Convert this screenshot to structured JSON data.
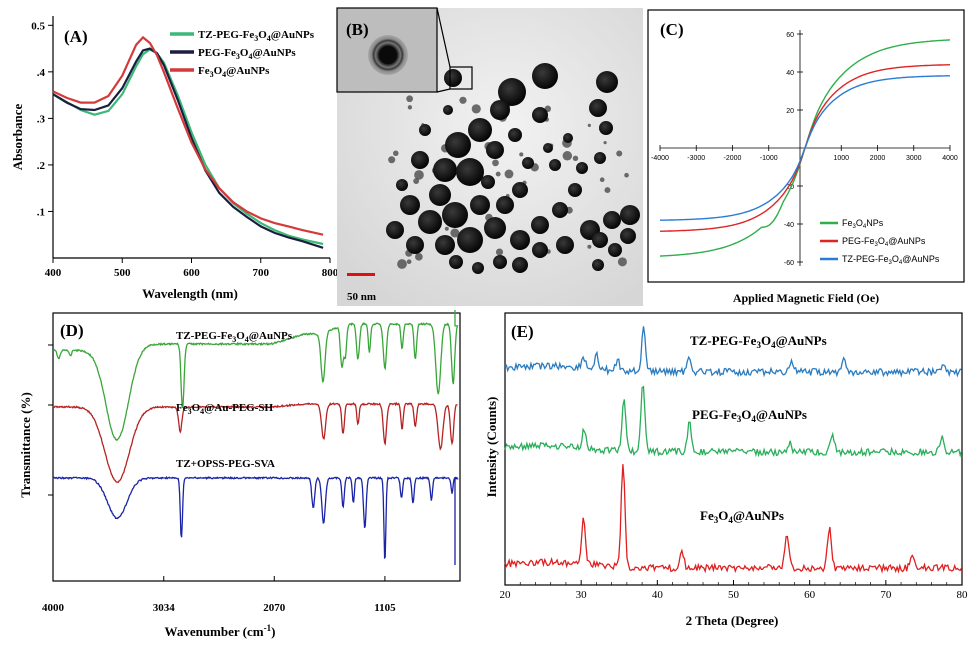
{
  "chart_data": [
    {
      "panel": "(A)",
      "type": "line",
      "title": "",
      "xlabel": "Wavelength (nm)",
      "ylabel": "Absorbance",
      "xlim": [
        400,
        800
      ],
      "ylim": [
        0,
        0.52
      ],
      "xticks": [
        "400",
        "500",
        "600",
        "700",
        "800"
      ],
      "yticks": [
        ".1",
        ".2",
        ".3",
        ".4",
        "0.5"
      ],
      "ytick_values": [
        0.1,
        0.2,
        0.3,
        0.4,
        0.5
      ],
      "legend_position": "top-right",
      "series": [
        {
          "name": "TZ-PEG-Fe3O4@AuNPs",
          "color": "#3cb878",
          "x": [
            400,
            420,
            440,
            460,
            480,
            500,
            520,
            530,
            540,
            550,
            560,
            580,
            600,
            620,
            640,
            660,
            680,
            700,
            720,
            740,
            760,
            790
          ],
          "y": [
            0.352,
            0.335,
            0.318,
            0.308,
            0.316,
            0.352,
            0.412,
            0.438,
            0.448,
            0.44,
            0.42,
            0.35,
            0.27,
            0.2,
            0.15,
            0.118,
            0.095,
            0.075,
            0.06,
            0.048,
            0.04,
            0.03
          ]
        },
        {
          "name": "PEG-Fe3O4@AuNPs",
          "color": "#1a1f3f",
          "x": [
            400,
            420,
            440,
            460,
            480,
            500,
            520,
            530,
            540,
            550,
            560,
            580,
            600,
            620,
            640,
            660,
            680,
            700,
            720,
            740,
            760,
            790
          ],
          "y": [
            0.352,
            0.334,
            0.32,
            0.318,
            0.328,
            0.365,
            0.422,
            0.446,
            0.45,
            0.44,
            0.415,
            0.34,
            0.258,
            0.188,
            0.14,
            0.11,
            0.088,
            0.068,
            0.054,
            0.044,
            0.036,
            0.022
          ]
        },
        {
          "name": "Fe3O4@AuNPs",
          "color": "#d43a3a",
          "x": [
            400,
            420,
            440,
            460,
            480,
            500,
            510,
            520,
            530,
            540,
            550,
            560,
            580,
            600,
            620,
            640,
            660,
            680,
            700,
            720,
            740,
            760,
            790
          ],
          "y": [
            0.358,
            0.344,
            0.334,
            0.334,
            0.348,
            0.392,
            0.425,
            0.458,
            0.474,
            0.462,
            0.436,
            0.4,
            0.322,
            0.248,
            0.19,
            0.15,
            0.12,
            0.1,
            0.085,
            0.075,
            0.068,
            0.06,
            0.05
          ]
        }
      ]
    },
    {
      "panel": "(C)",
      "type": "line",
      "title": "",
      "xlabel": "Applied Magnetic Field (Oe)",
      "ylabel": "",
      "xlim": [
        -4000,
        4000
      ],
      "ylim": [
        -60,
        60
      ],
      "xticks": [
        "-4000",
        "-3000",
        "-2000",
        "-1000",
        "1000",
        "2000",
        "3000",
        "4000"
      ],
      "xtick_values": [
        -4000,
        -3000,
        -2000,
        -1000,
        1000,
        2000,
        3000,
        4000
      ],
      "yticks": [
        "-60",
        "-40",
        "-20",
        "20",
        "40",
        "60"
      ],
      "ytick_values": [
        -60,
        -40,
        -20,
        20,
        40,
        60
      ],
      "legend_position": "bottom-right",
      "series": [
        {
          "name": "Fe3O4NPs",
          "color": "#2fae4a",
          "ms": 59,
          "k": 400
        },
        {
          "name": "PEG-Fe3O4@AuNPs",
          "color": "#e02424",
          "ms": 45,
          "k": 330
        },
        {
          "name": "TZ-PEG-Fe3O4@AuNPs",
          "color": "#2a7bd6",
          "ms": 39,
          "k": 320
        }
      ]
    },
    {
      "panel": "(D)",
      "type": "line",
      "title": "",
      "xlabel": "Wavenumber (cm-1)",
      "ylabel": "Transmittance (%)",
      "xlim": [
        4000,
        450
      ],
      "xticks": [
        "4000",
        "3034",
        "2070",
        "1105"
      ],
      "xtick_values": [
        4000,
        3034,
        2070,
        1105
      ],
      "series": [
        {
          "name": "TZ-PEG-Fe3O4@AuNPs",
          "color": "#3aa63a",
          "offset": 0.0
        },
        {
          "name": "Fe3O4@Au-PEG-SH",
          "color": "#b52323",
          "offset": 1.0
        },
        {
          "name": "TZ+OPSS-PEG-SVA",
          "color": "#1a24a6",
          "offset": 2.0
        }
      ]
    },
    {
      "panel": "(E)",
      "type": "line",
      "title": "",
      "xlabel": "2 Theta (Degree)",
      "ylabel": "Intensity (Counts)",
      "xlim": [
        20,
        80
      ],
      "xticks": [
        "20",
        "30",
        "40",
        "50",
        "60",
        "70",
        "80"
      ],
      "xtick_values": [
        20,
        30,
        40,
        50,
        60,
        70,
        80
      ],
      "series": [
        {
          "name": "TZ-PEG-Fe3O4@AuNPs",
          "color": "#2a7bbf",
          "offset": 2,
          "peaks": [
            [
              30.3,
              0.2
            ],
            [
              32.0,
              0.25
            ],
            [
              34.8,
              0.2
            ],
            [
              38.2,
              0.82
            ],
            [
              44.2,
              0.28
            ],
            [
              57.6,
              0.2
            ],
            [
              64.5,
              0.3
            ],
            [
              77.5,
              0.12
            ]
          ]
        },
        {
          "name": "PEG-Fe3O4@AuNPs",
          "color": "#2aae5a",
          "offset": 1,
          "peaks": [
            [
              30.4,
              0.25
            ],
            [
              35.6,
              0.7
            ],
            [
              38.1,
              1.0
            ],
            [
              44.2,
              0.42
            ],
            [
              57.4,
              0.15
            ],
            [
              63.0,
              0.25
            ],
            [
              77.4,
              0.2
            ]
          ]
        },
        {
          "name": "Fe3O4@AuNPs",
          "color": "#e02020",
          "offset": 0,
          "peaks": [
            [
              30.3,
              0.45
            ],
            [
              35.5,
              1.0
            ],
            [
              43.2,
              0.18
            ],
            [
              57.0,
              0.35
            ],
            [
              62.6,
              0.4
            ],
            [
              73.5,
              0.12
            ]
          ]
        }
      ]
    }
  ],
  "panel_b": {
    "label": "(B)",
    "scale_bar": "50 nm"
  }
}
